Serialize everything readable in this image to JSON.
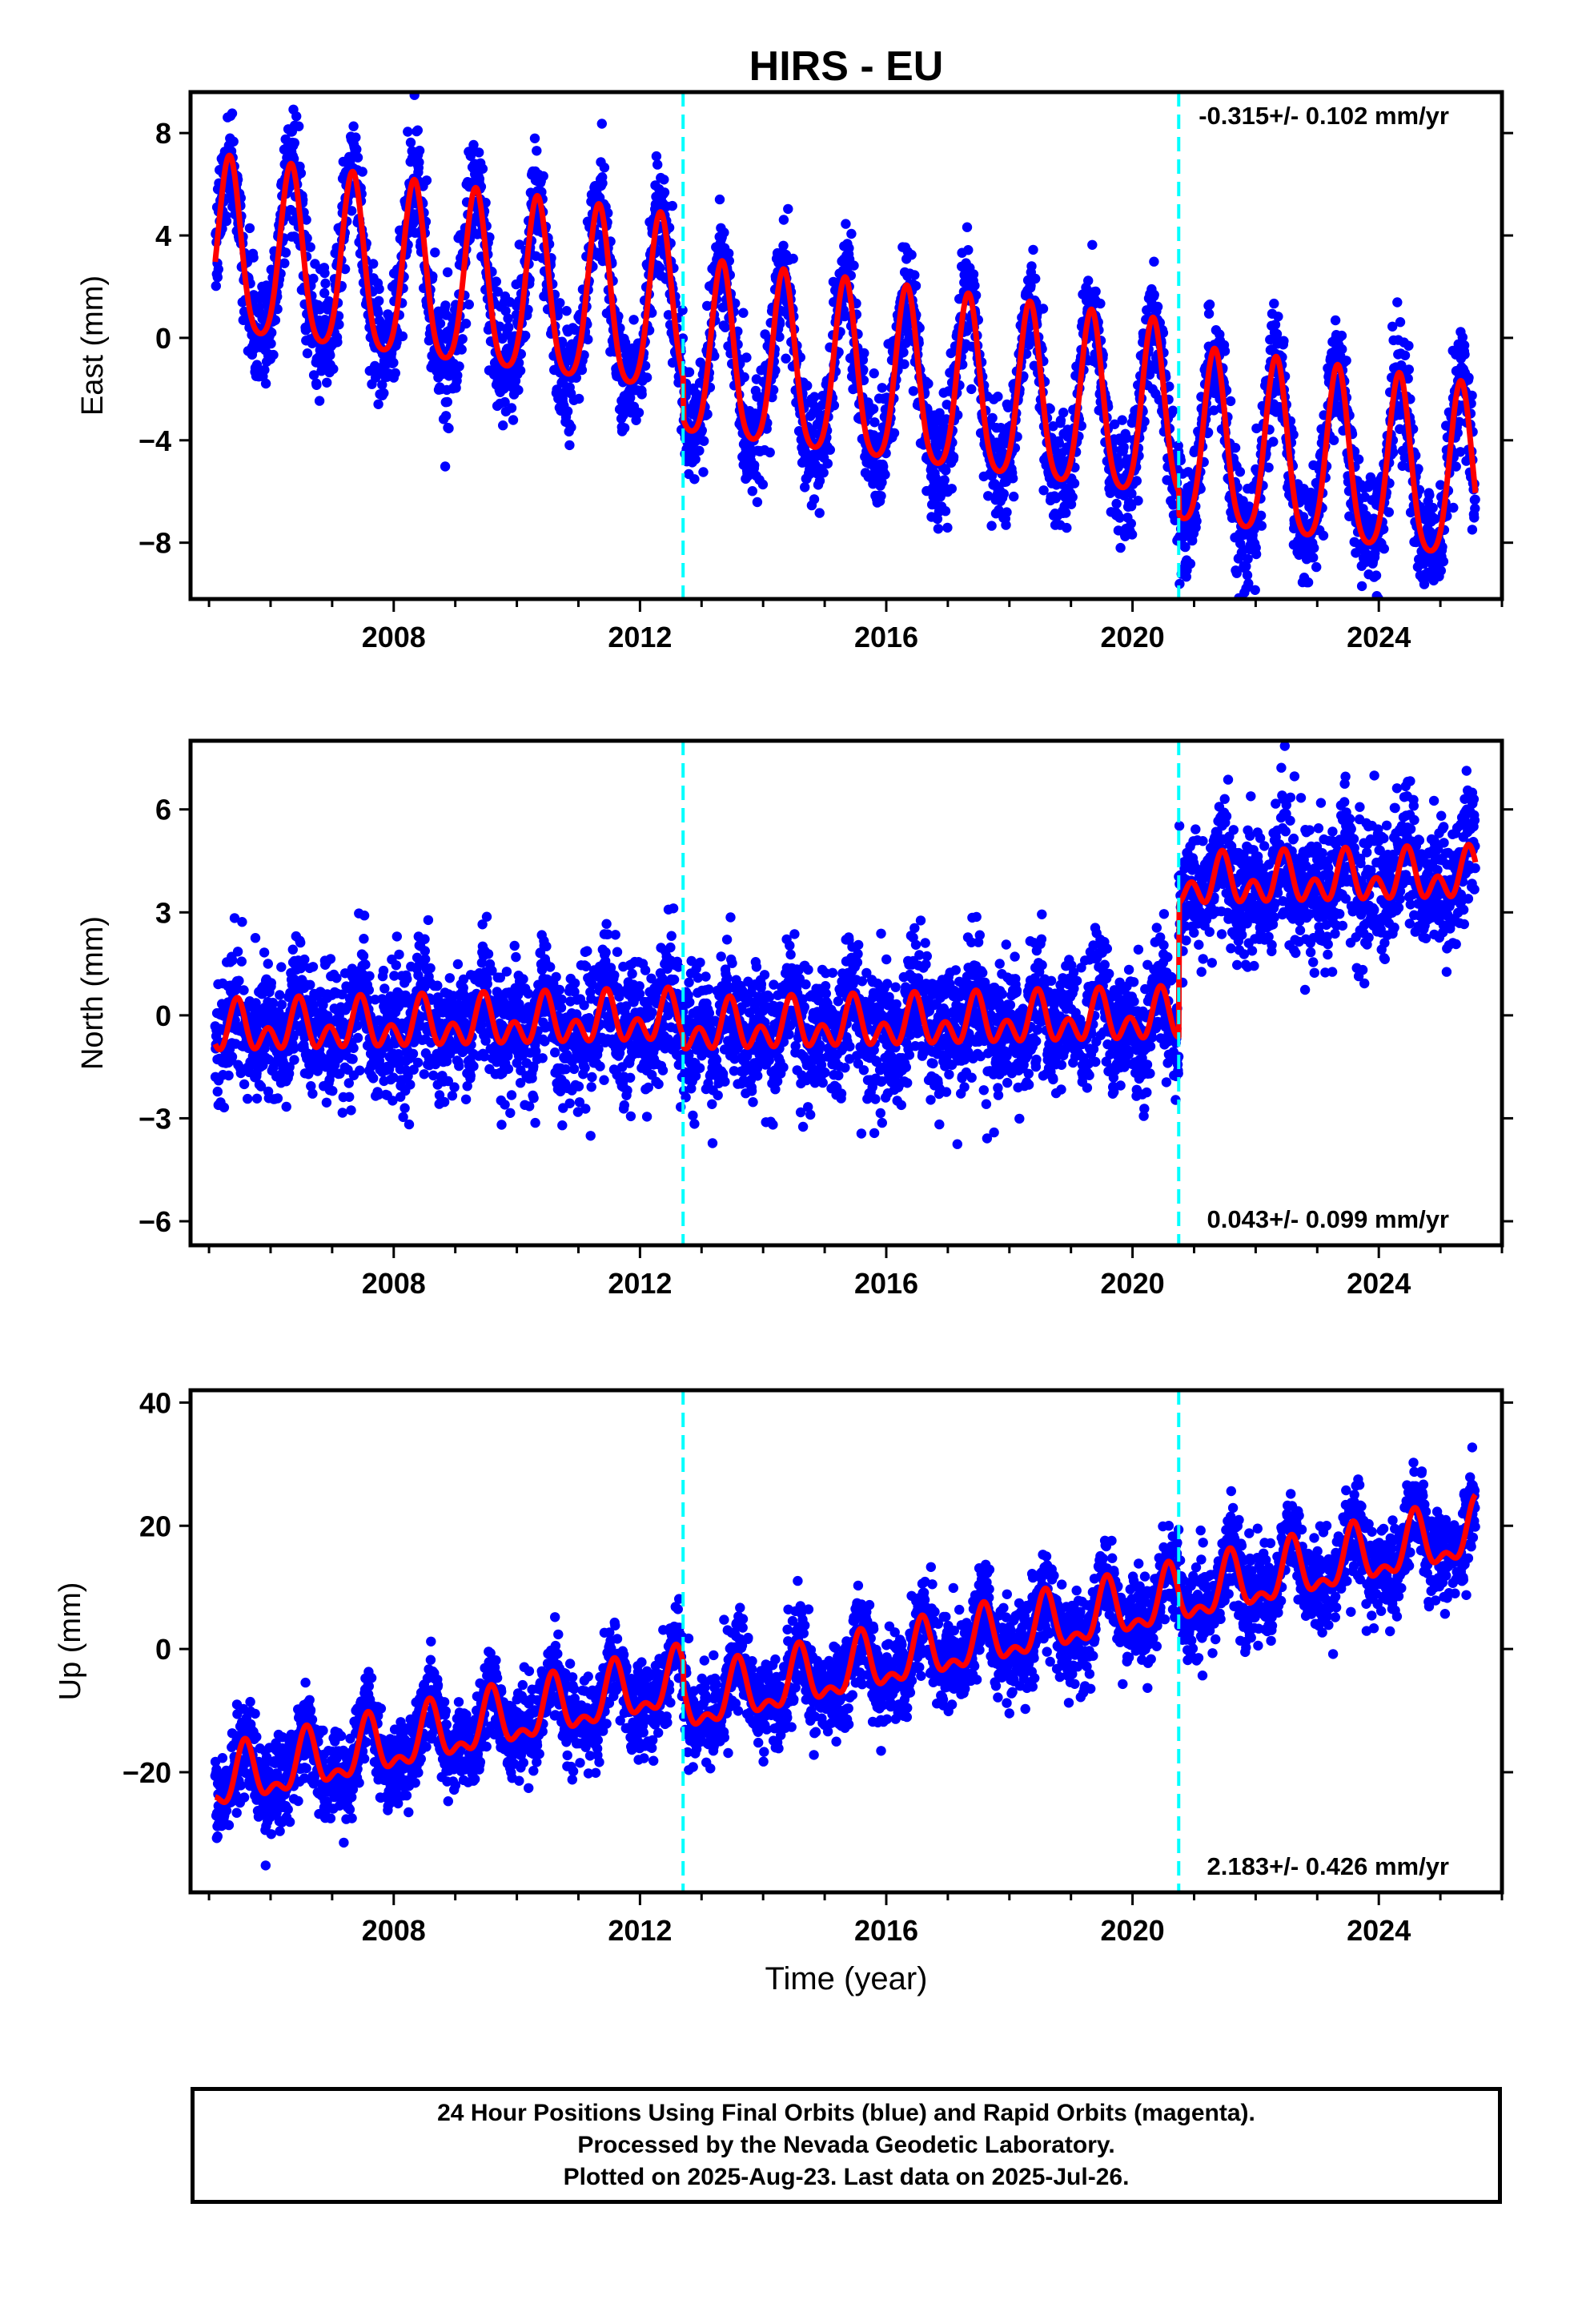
{
  "title": "HIRS - EU",
  "xlabel": "Time (year)",
  "footer": {
    "line1": "24 Hour Positions Using Final Orbits (blue) and Rapid Orbits (magenta).",
    "line2": "Processed by the Nevada Geodetic Laboratory.",
    "line3": "Plotted on 2025-Aug-23. Last data on 2025-Jul-26."
  },
  "colors": {
    "points": "#0000ff",
    "model": "#ff0000",
    "offset_lines": "#00ffff",
    "frame": "#000000"
  },
  "chart_data": [
    {
      "type": "scatter",
      "ylabel": "East (mm)",
      "xlim": [
        2004.7,
        2026.0
      ],
      "ylim": [
        -10.2,
        9.6
      ],
      "xticks": [
        2008,
        2012,
        2016,
        2020,
        2024
      ],
      "yticks": [
        -8,
        -4,
        0,
        4,
        8
      ],
      "offset_lines": [
        2012.7,
        2020.75
      ],
      "rate_label": "-0.315+/- 0.102 mm/yr",
      "rate_position": "top-right",
      "data_range_x": [
        2005.1,
        2025.57
      ],
      "model": {
        "intercept_at_start": 3.2,
        "trend_mm_per_yr": -0.315,
        "annual_amplitude": 3.4,
        "annual_phase_peak_month": 4.5,
        "semiannual_amplitude": 0.6,
        "steps": [
          {
            "epoch": 2012.7,
            "size": -1.6
          },
          {
            "epoch": 2020.75,
            "size": -0.9
          }
        ]
      },
      "scatter_sigma": 1.1
    },
    {
      "type": "scatter",
      "ylabel": "North (mm)",
      "xlim": [
        2004.7,
        2026.0
      ],
      "ylim": [
        -6.7,
        8.0
      ],
      "xticks": [
        2008,
        2012,
        2016,
        2020,
        2024
      ],
      "yticks": [
        -6,
        -3,
        0,
        3,
        6
      ],
      "offset_lines": [
        2012.7,
        2020.75
      ],
      "rate_label": "0.043+/- 0.099 mm/yr",
      "rate_position": "bottom-right",
      "data_range_x": [
        2005.1,
        2025.57
      ],
      "model": {
        "intercept_at_start": -0.45,
        "trend_mm_per_yr": 0.043,
        "annual_amplitude": 0.45,
        "annual_phase_peak_month": 6.0,
        "semiannual_amplitude": 0.5,
        "steps": [
          {
            "epoch": 2012.7,
            "size": -0.3
          },
          {
            "epoch": 2020.75,
            "size": 3.9
          }
        ]
      },
      "scatter_sigma": 0.95
    },
    {
      "type": "scatter",
      "ylabel": "Up (mm)",
      "xlim": [
        2004.7,
        2026.0
      ],
      "ylim": [
        -39.5,
        42.0
      ],
      "xticks": [
        2008,
        2012,
        2016,
        2020,
        2024
      ],
      "yticks": [
        -20,
        0,
        20,
        40
      ],
      "offset_lines": [
        2012.7,
        2020.75
      ],
      "rate_label": "2.183+/- 0.426 mm/yr",
      "rate_position": "bottom-right",
      "data_range_x": [
        2005.1,
        2025.57
      ],
      "model": {
        "intercept_at_start": -22.0,
        "trend_mm_per_yr": 2.183,
        "annual_amplitude": 4.2,
        "annual_phase_peak_month": 7.5,
        "semiannual_amplitude": 2.2,
        "steps": [
          {
            "epoch": 2012.7,
            "size": -4.0
          },
          {
            "epoch": 2020.75,
            "size": 0.0
          }
        ]
      },
      "scatter_sigma": 3.6
    }
  ]
}
